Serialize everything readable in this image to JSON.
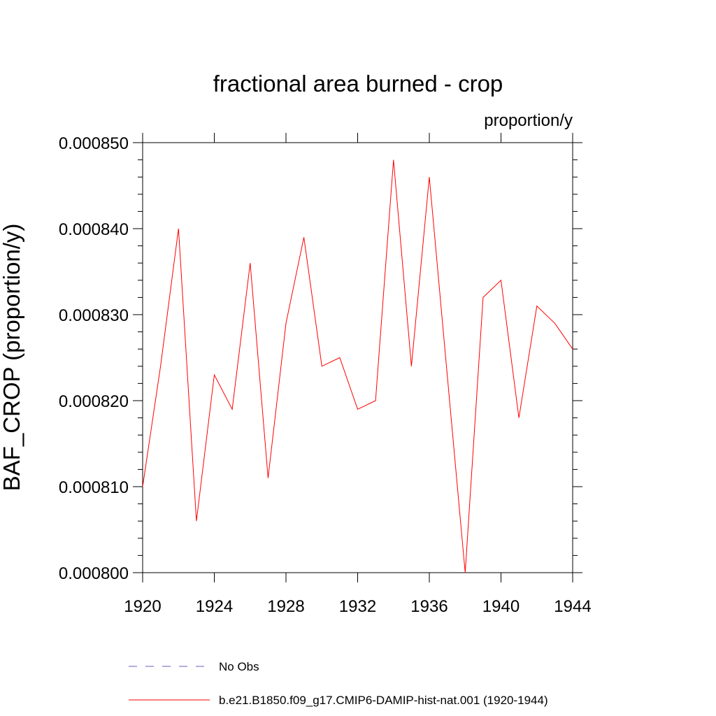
{
  "chart_data": {
    "type": "line",
    "title": "fractional area burned - crop",
    "units": "proportion/y",
    "ylabel": "BAF_CROP  (proportion/y)",
    "xlabel": "",
    "xlim": [
      1920,
      1944
    ],
    "ylim": [
      0.0008,
      0.00085
    ],
    "x_ticks": [
      1920,
      1924,
      1928,
      1932,
      1936,
      1940,
      1944
    ],
    "x_tick_labels": [
      "1920",
      "1924",
      "1928",
      "1932",
      "1936",
      "1940",
      "1944"
    ],
    "y_ticks": [
      0.0008,
      0.00081,
      0.00082,
      0.00083,
      0.00084,
      0.00085
    ],
    "y_tick_labels": [
      "0.000800",
      "0.000810",
      "0.000820",
      "0.000830",
      "0.000840",
      "0.000850"
    ],
    "grid": false,
    "legend_position": "bottom",
    "series": [
      {
        "name": "b.e21.B1850.f09_g17.CMIP6-DAMIP-hist-nat.001 (1920-1944)",
        "color": "#ff0000",
        "style": "solid",
        "x": [
          1920,
          1921,
          1922,
          1923,
          1924,
          1925,
          1926,
          1927,
          1928,
          1929,
          1930,
          1931,
          1932,
          1933,
          1934,
          1935,
          1936,
          1937,
          1938,
          1939,
          1940,
          1941,
          1942,
          1943,
          1944
        ],
        "y": [
          0.00081,
          0.000824,
          0.00084,
          0.000806,
          0.000823,
          0.000819,
          0.000836,
          0.000811,
          0.000829,
          0.000839,
          0.000824,
          0.000825,
          0.000819,
          0.00082,
          0.000848,
          0.000824,
          0.000846,
          0.000823,
          0.0008,
          0.000832,
          0.000834,
          0.000818,
          0.000831,
          0.000829,
          0.000826
        ]
      }
    ],
    "legend": [
      {
        "label": "No Obs",
        "color": "#6060c0",
        "style": "dashed"
      },
      {
        "label": "b.e21.B1850.f09_g17.CMIP6-DAMIP-hist-nat.001 (1920-1944)",
        "color": "#ff0000",
        "style": "solid"
      }
    ]
  }
}
